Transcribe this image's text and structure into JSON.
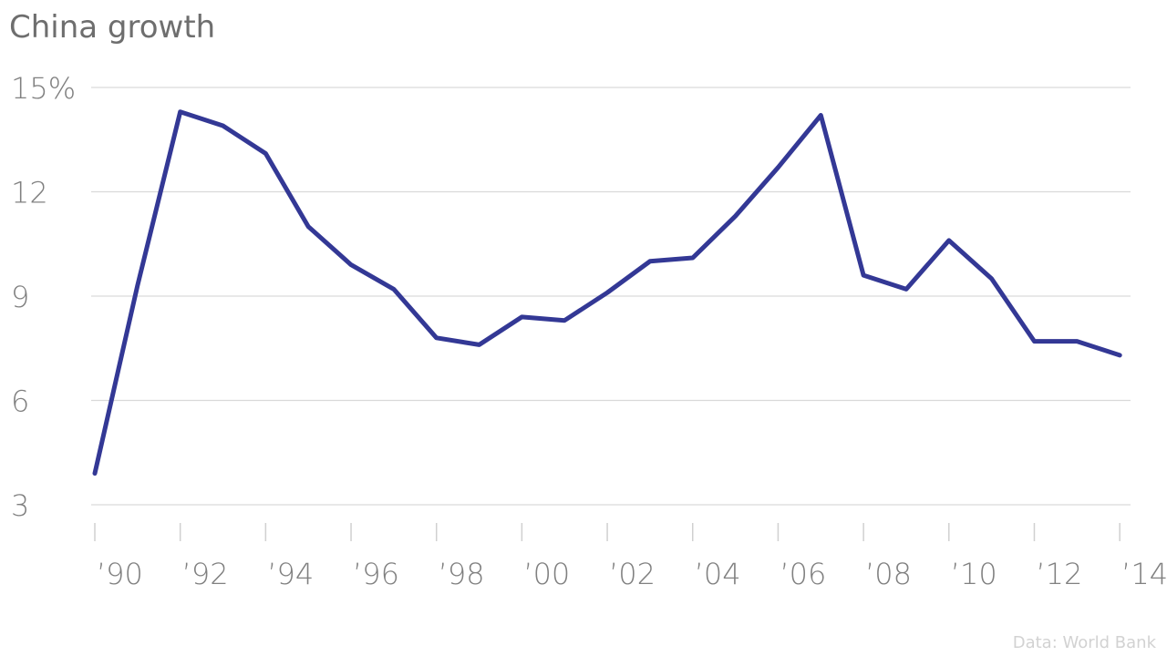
{
  "chart_data": {
    "type": "line",
    "title": "China growth",
    "xlabel": "",
    "ylabel": "",
    "x": [
      1990,
      1991,
      1992,
      1993,
      1994,
      1995,
      1996,
      1997,
      1998,
      1999,
      2000,
      2001,
      2002,
      2003,
      2004,
      2005,
      2006,
      2007,
      2008,
      2009,
      2010,
      2011,
      2012,
      2013,
      2014
    ],
    "series": [
      {
        "name": "",
        "color": "#333895",
        "values": [
          3.9,
          9.3,
          14.3,
          13.9,
          13.1,
          11.0,
          9.9,
          9.2,
          7.8,
          7.6,
          8.4,
          8.3,
          9.1,
          10.0,
          10.1,
          11.3,
          12.7,
          14.2,
          9.6,
          9.2,
          10.6,
          9.5,
          7.7,
          7.7,
          7.3
        ]
      }
    ],
    "ylim": [
      3,
      15
    ],
    "y_ticks": [
      {
        "value": 3,
        "label": "3"
      },
      {
        "value": 6,
        "label": "6"
      },
      {
        "value": 9,
        "label": "9"
      },
      {
        "value": 12,
        "label": "12"
      },
      {
        "value": 15,
        "label": "15%"
      }
    ],
    "x_ticks": [
      {
        "value": 1990,
        "label": "’90"
      },
      {
        "value": 1992,
        "label": "’92"
      },
      {
        "value": 1994,
        "label": "’94"
      },
      {
        "value": 1996,
        "label": "’96"
      },
      {
        "value": 1998,
        "label": "’98"
      },
      {
        "value": 2000,
        "label": "’00"
      },
      {
        "value": 2002,
        "label": "’02"
      },
      {
        "value": 2004,
        "label": "’04"
      },
      {
        "value": 2006,
        "label": "’06"
      },
      {
        "value": 2008,
        "label": "’08"
      },
      {
        "value": 2010,
        "label": "’10"
      },
      {
        "value": 2012,
        "label": "’12"
      },
      {
        "value": 2014,
        "label": "’14"
      }
    ],
    "grid": true,
    "legend": "none",
    "source": "Data: World Bank"
  }
}
